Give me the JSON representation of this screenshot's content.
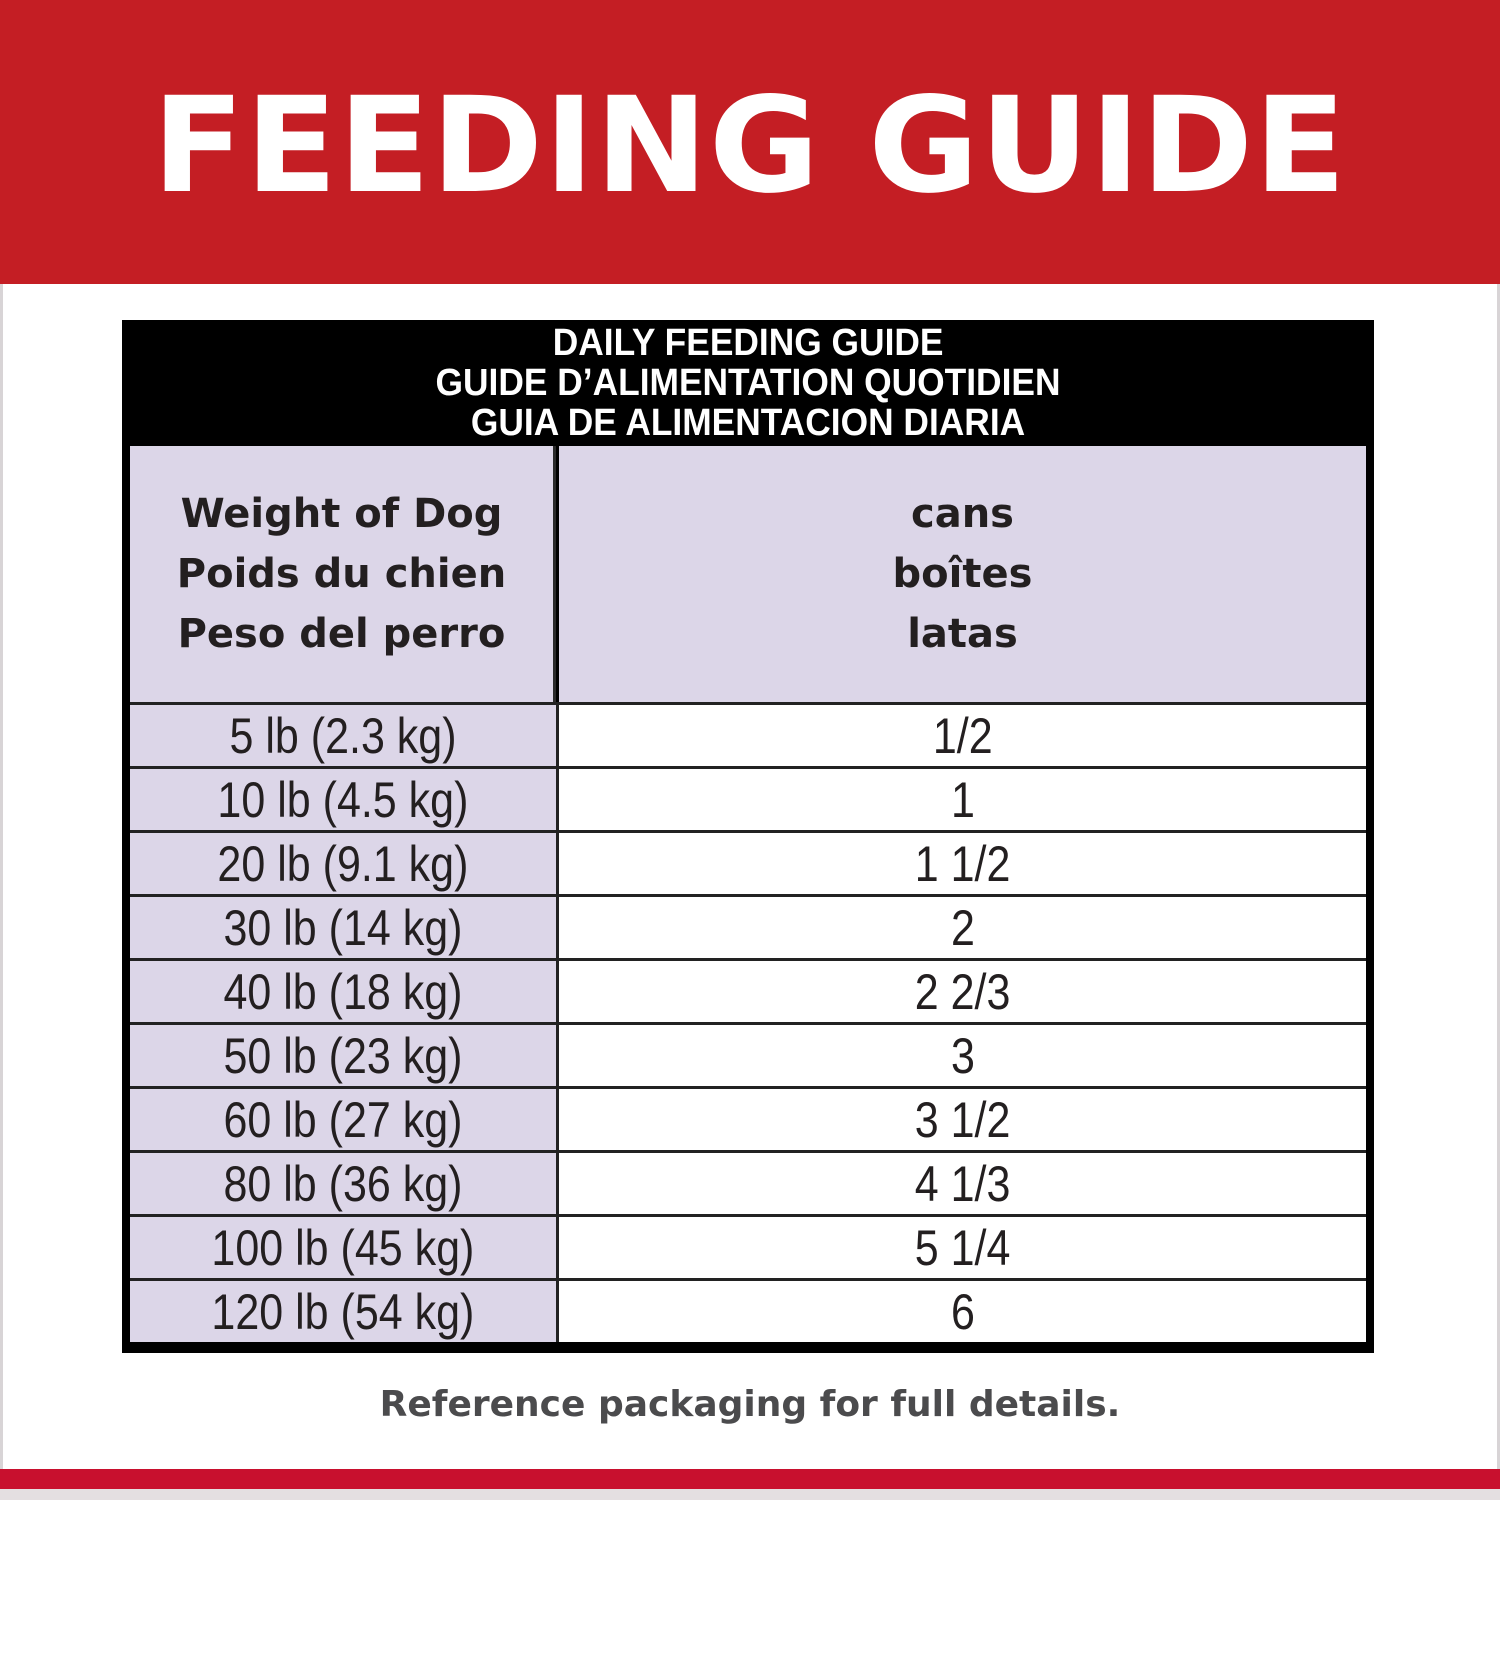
{
  "banner": {
    "title": "FEEDING GUIDE",
    "background_color": "#c41e24"
  },
  "table": {
    "header_lines": [
      "DAILY FEEDING GUIDE",
      "GUIDE D’ALIMENTATION QUOTIDIEN",
      "GUIA DE ALIMENTACION DIARIA"
    ],
    "columns": [
      {
        "lines": [
          "Weight of Dog",
          "Poids du chien",
          "Peso del perro"
        ]
      },
      {
        "lines": [
          "cans",
          "boîtes",
          "latas"
        ]
      }
    ],
    "rows": [
      {
        "weight": "5 lb (2.3 kg)",
        "cans": "1/2"
      },
      {
        "weight": "10 lb (4.5 kg)",
        "cans": "1"
      },
      {
        "weight": "20 lb (9.1 kg)",
        "cans": "1 1/2"
      },
      {
        "weight": "30 lb (14 kg)",
        "cans": "2"
      },
      {
        "weight": "40 lb (18 kg)",
        "cans": "2 2/3"
      },
      {
        "weight": "50 lb (23 kg)",
        "cans": "3"
      },
      {
        "weight": "60 lb (27 kg)",
        "cans": "3 1/2"
      },
      {
        "weight": "80 lb (36 kg)",
        "cans": "4 1/3"
      },
      {
        "weight": "100 lb (45 kg)",
        "cans": "5 1/4"
      },
      {
        "weight": "120 lb (54 kg)",
        "cans": "6"
      }
    ],
    "label_column_color": "#dcd6e8"
  },
  "footnote": "Reference packaging for full details.",
  "accent_color": "#c8102e"
}
